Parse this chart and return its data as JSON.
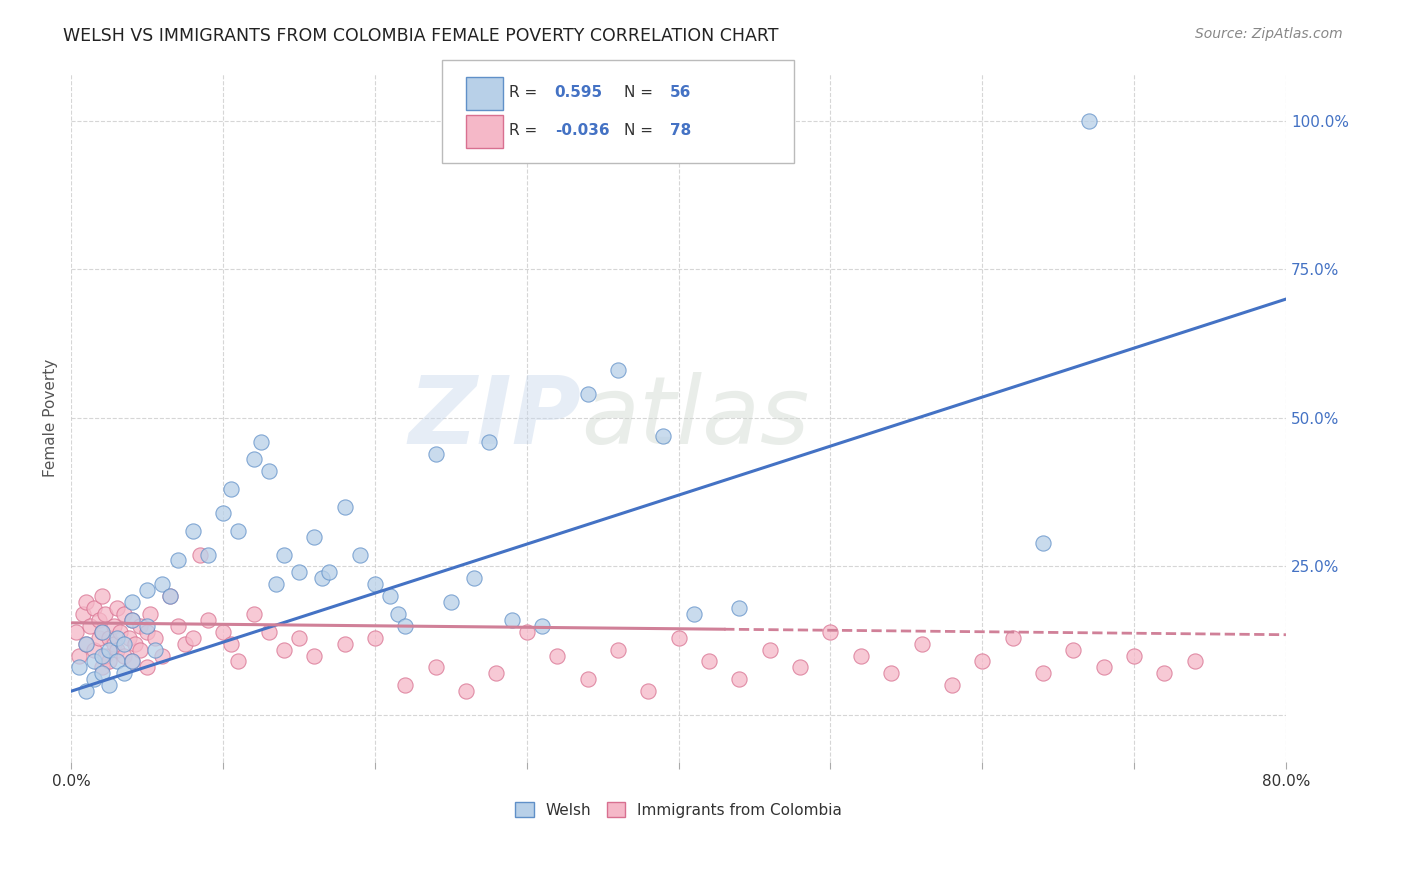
{
  "title": "WELSH VS IMMIGRANTS FROM COLOMBIA FEMALE POVERTY CORRELATION CHART",
  "source": "Source: ZipAtlas.com",
  "ylabel": "Female Poverty",
  "watermark_zip": "ZIP",
  "watermark_atlas": "atlas",
  "xlim": [
    0.0,
    0.8
  ],
  "ylim": [
    -0.08,
    1.08
  ],
  "legend_welsh_R": "0.595",
  "legend_welsh_N": "56",
  "legend_colombia_R": "-0.036",
  "legend_colombia_N": "78",
  "welsh_fill_color": "#b8d0e8",
  "colombia_fill_color": "#f5b8c8",
  "welsh_edge_color": "#6090c8",
  "colombia_edge_color": "#d87090",
  "welsh_line_color": "#4472c4",
  "colombia_line_color": "#d08098",
  "grid_color": "#cccccc",
  "title_color": "#222222",
  "right_axis_color": "#4472c4",
  "welsh_scatter_x": [
    0.005,
    0.01,
    0.01,
    0.015,
    0.015,
    0.02,
    0.02,
    0.02,
    0.025,
    0.025,
    0.03,
    0.03,
    0.035,
    0.035,
    0.04,
    0.04,
    0.04,
    0.05,
    0.05,
    0.055,
    0.06,
    0.065,
    0.07,
    0.08,
    0.09,
    0.1,
    0.105,
    0.11,
    0.12,
    0.125,
    0.13,
    0.135,
    0.14,
    0.15,
    0.16,
    0.165,
    0.17,
    0.18,
    0.19,
    0.2,
    0.21,
    0.215,
    0.22,
    0.24,
    0.25,
    0.265,
    0.275,
    0.29,
    0.31,
    0.34,
    0.36,
    0.39,
    0.41,
    0.44,
    0.64,
    0.67
  ],
  "welsh_scatter_y": [
    0.08,
    0.04,
    0.12,
    0.06,
    0.09,
    0.07,
    0.1,
    0.14,
    0.05,
    0.11,
    0.09,
    0.13,
    0.07,
    0.12,
    0.16,
    0.19,
    0.09,
    0.15,
    0.21,
    0.11,
    0.22,
    0.2,
    0.26,
    0.31,
    0.27,
    0.34,
    0.38,
    0.31,
    0.43,
    0.46,
    0.41,
    0.22,
    0.27,
    0.24,
    0.3,
    0.23,
    0.24,
    0.35,
    0.27,
    0.22,
    0.2,
    0.17,
    0.15,
    0.44,
    0.19,
    0.23,
    0.46,
    0.16,
    0.15,
    0.54,
    0.58,
    0.47,
    0.17,
    0.18,
    0.29,
    1.0
  ],
  "colombia_scatter_x": [
    0.003,
    0.005,
    0.008,
    0.01,
    0.01,
    0.012,
    0.015,
    0.015,
    0.018,
    0.018,
    0.02,
    0.02,
    0.02,
    0.022,
    0.022,
    0.025,
    0.025,
    0.028,
    0.028,
    0.03,
    0.03,
    0.032,
    0.035,
    0.035,
    0.038,
    0.04,
    0.04,
    0.042,
    0.045,
    0.045,
    0.05,
    0.05,
    0.052,
    0.055,
    0.06,
    0.065,
    0.07,
    0.075,
    0.08,
    0.085,
    0.09,
    0.1,
    0.105,
    0.11,
    0.12,
    0.13,
    0.14,
    0.15,
    0.16,
    0.18,
    0.2,
    0.22,
    0.24,
    0.26,
    0.28,
    0.3,
    0.32,
    0.34,
    0.36,
    0.38,
    0.4,
    0.42,
    0.44,
    0.46,
    0.48,
    0.5,
    0.52,
    0.54,
    0.56,
    0.58,
    0.6,
    0.62,
    0.64,
    0.66,
    0.68,
    0.7,
    0.72,
    0.74
  ],
  "colombia_scatter_y": [
    0.14,
    0.1,
    0.17,
    0.12,
    0.19,
    0.15,
    0.11,
    0.18,
    0.13,
    0.16,
    0.08,
    0.14,
    0.2,
    0.1,
    0.17,
    0.13,
    0.09,
    0.15,
    0.12,
    0.11,
    0.18,
    0.14,
    0.1,
    0.17,
    0.13,
    0.09,
    0.16,
    0.12,
    0.15,
    0.11,
    0.14,
    0.08,
    0.17,
    0.13,
    0.1,
    0.2,
    0.15,
    0.12,
    0.13,
    0.27,
    0.16,
    0.14,
    0.12,
    0.09,
    0.17,
    0.14,
    0.11,
    0.13,
    0.1,
    0.12,
    0.13,
    0.05,
    0.08,
    0.04,
    0.07,
    0.14,
    0.1,
    0.06,
    0.11,
    0.04,
    0.13,
    0.09,
    0.06,
    0.11,
    0.08,
    0.14,
    0.1,
    0.07,
    0.12,
    0.05,
    0.09,
    0.13,
    0.07,
    0.11,
    0.08,
    0.1,
    0.07,
    0.09
  ],
  "welsh_trendline_x": [
    0.0,
    0.8
  ],
  "welsh_trendline_y": [
    0.04,
    0.7
  ],
  "colombia_trendline_x": [
    0.0,
    0.8
  ],
  "colombia_trendline_y": [
    0.155,
    0.135
  ],
  "background_color": "#ffffff"
}
